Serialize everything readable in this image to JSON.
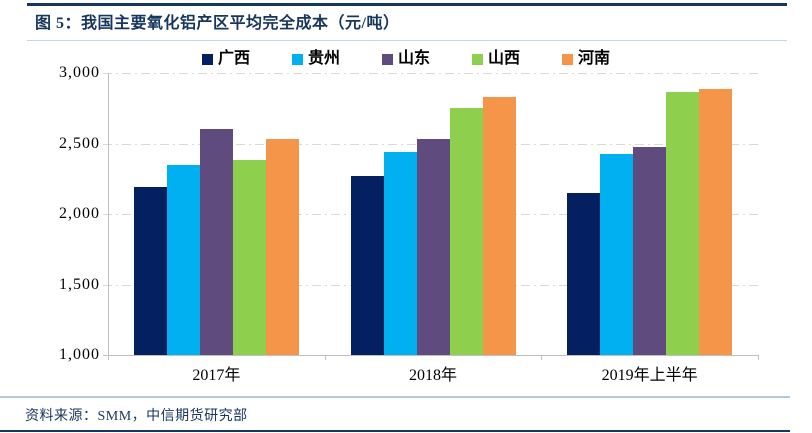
{
  "header": {
    "title": "图 5：我国主要氧化铝产区平均完全成本（元/吨）"
  },
  "footer": {
    "source": "资料来源：SMM，中信期货研究部"
  },
  "colors": {
    "accent_navy": "#17365D",
    "rule_light_blue": "#B5C9DB",
    "gridline": "#D9D9D9",
    "axis": "#BFBFBF"
  },
  "chart_data": {
    "type": "bar",
    "title": "我国主要氧化铝产区平均完全成本（元/吨）",
    "categories": [
      "2017年",
      "2018年",
      "2019年上半年"
    ],
    "series": [
      {
        "name": "广西",
        "color": "#052060",
        "values": [
          2190,
          2270,
          2150
        ]
      },
      {
        "name": "贵州",
        "color": "#00B0F0",
        "values": [
          2350,
          2440,
          2425
        ]
      },
      {
        "name": "山东",
        "color": "#5F4B7E",
        "values": [
          2600,
          2530,
          2475
        ]
      },
      {
        "name": "山西",
        "color": "#8ED04E",
        "values": [
          2385,
          2755,
          2865
        ]
      },
      {
        "name": "河南",
        "color": "#F5954A",
        "values": [
          2530,
          2830,
          2885
        ]
      }
    ],
    "ylim": [
      1000,
      3000
    ],
    "ytick_step": 500,
    "ytick_labels": [
      "3,000",
      "2,500",
      "2,000",
      "1,500",
      "1,000"
    ],
    "xlabel": "",
    "ylabel": "",
    "grid": true,
    "legend_position": "top"
  }
}
